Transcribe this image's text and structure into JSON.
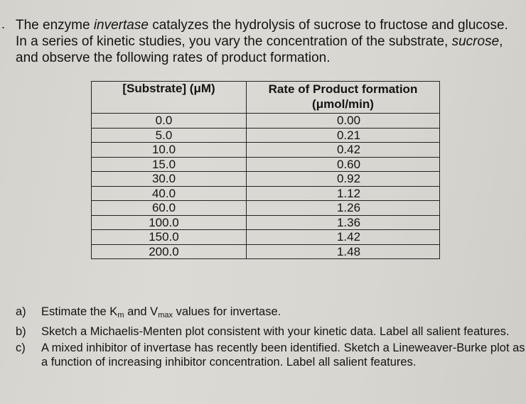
{
  "intro": {
    "part1": "The enzyme ",
    "enzyme": "invertase",
    "part2": " catalyzes the hydrolysis of sucrose to fructose and glucose. In a series of kinetic studies, you vary the concentration of the substrate, ",
    "substrate": "sucrose",
    "part3": ", and observe the following rates of product formation."
  },
  "table": {
    "headers": [
      "[Substrate] (μM)",
      "Rate of Product formation (μmol/min)"
    ],
    "rows": [
      [
        "0.0",
        "0.00"
      ],
      [
        "5.0",
        "0.21"
      ],
      [
        "10.0",
        "0.42"
      ],
      [
        "15.0",
        "0.60"
      ],
      [
        "30.0",
        "0.92"
      ],
      [
        "40.0",
        "1.12"
      ],
      [
        "60.0",
        "1.26"
      ],
      [
        "100.0",
        "1.36"
      ],
      [
        "150.0",
        "1.42"
      ],
      [
        "200.0",
        "1.48"
      ]
    ]
  },
  "questions": {
    "a_label": "a)",
    "a_text_1": "Estimate the K",
    "a_sub_1": "m",
    "a_text_2": " and V",
    "a_sub_2": "max",
    "a_text_3": " values for invertase.",
    "b_label": "b)",
    "b_text": "Sketch a Michaelis-Menten plot consistent with your kinetic data. Label all salient features.",
    "c_label": "c)",
    "c_text": "A mixed inhibitor of invertase has recently been identified. Sketch a Lineweaver-Burke plot as a function of increasing inhibitor concentration. Label all salient features."
  }
}
